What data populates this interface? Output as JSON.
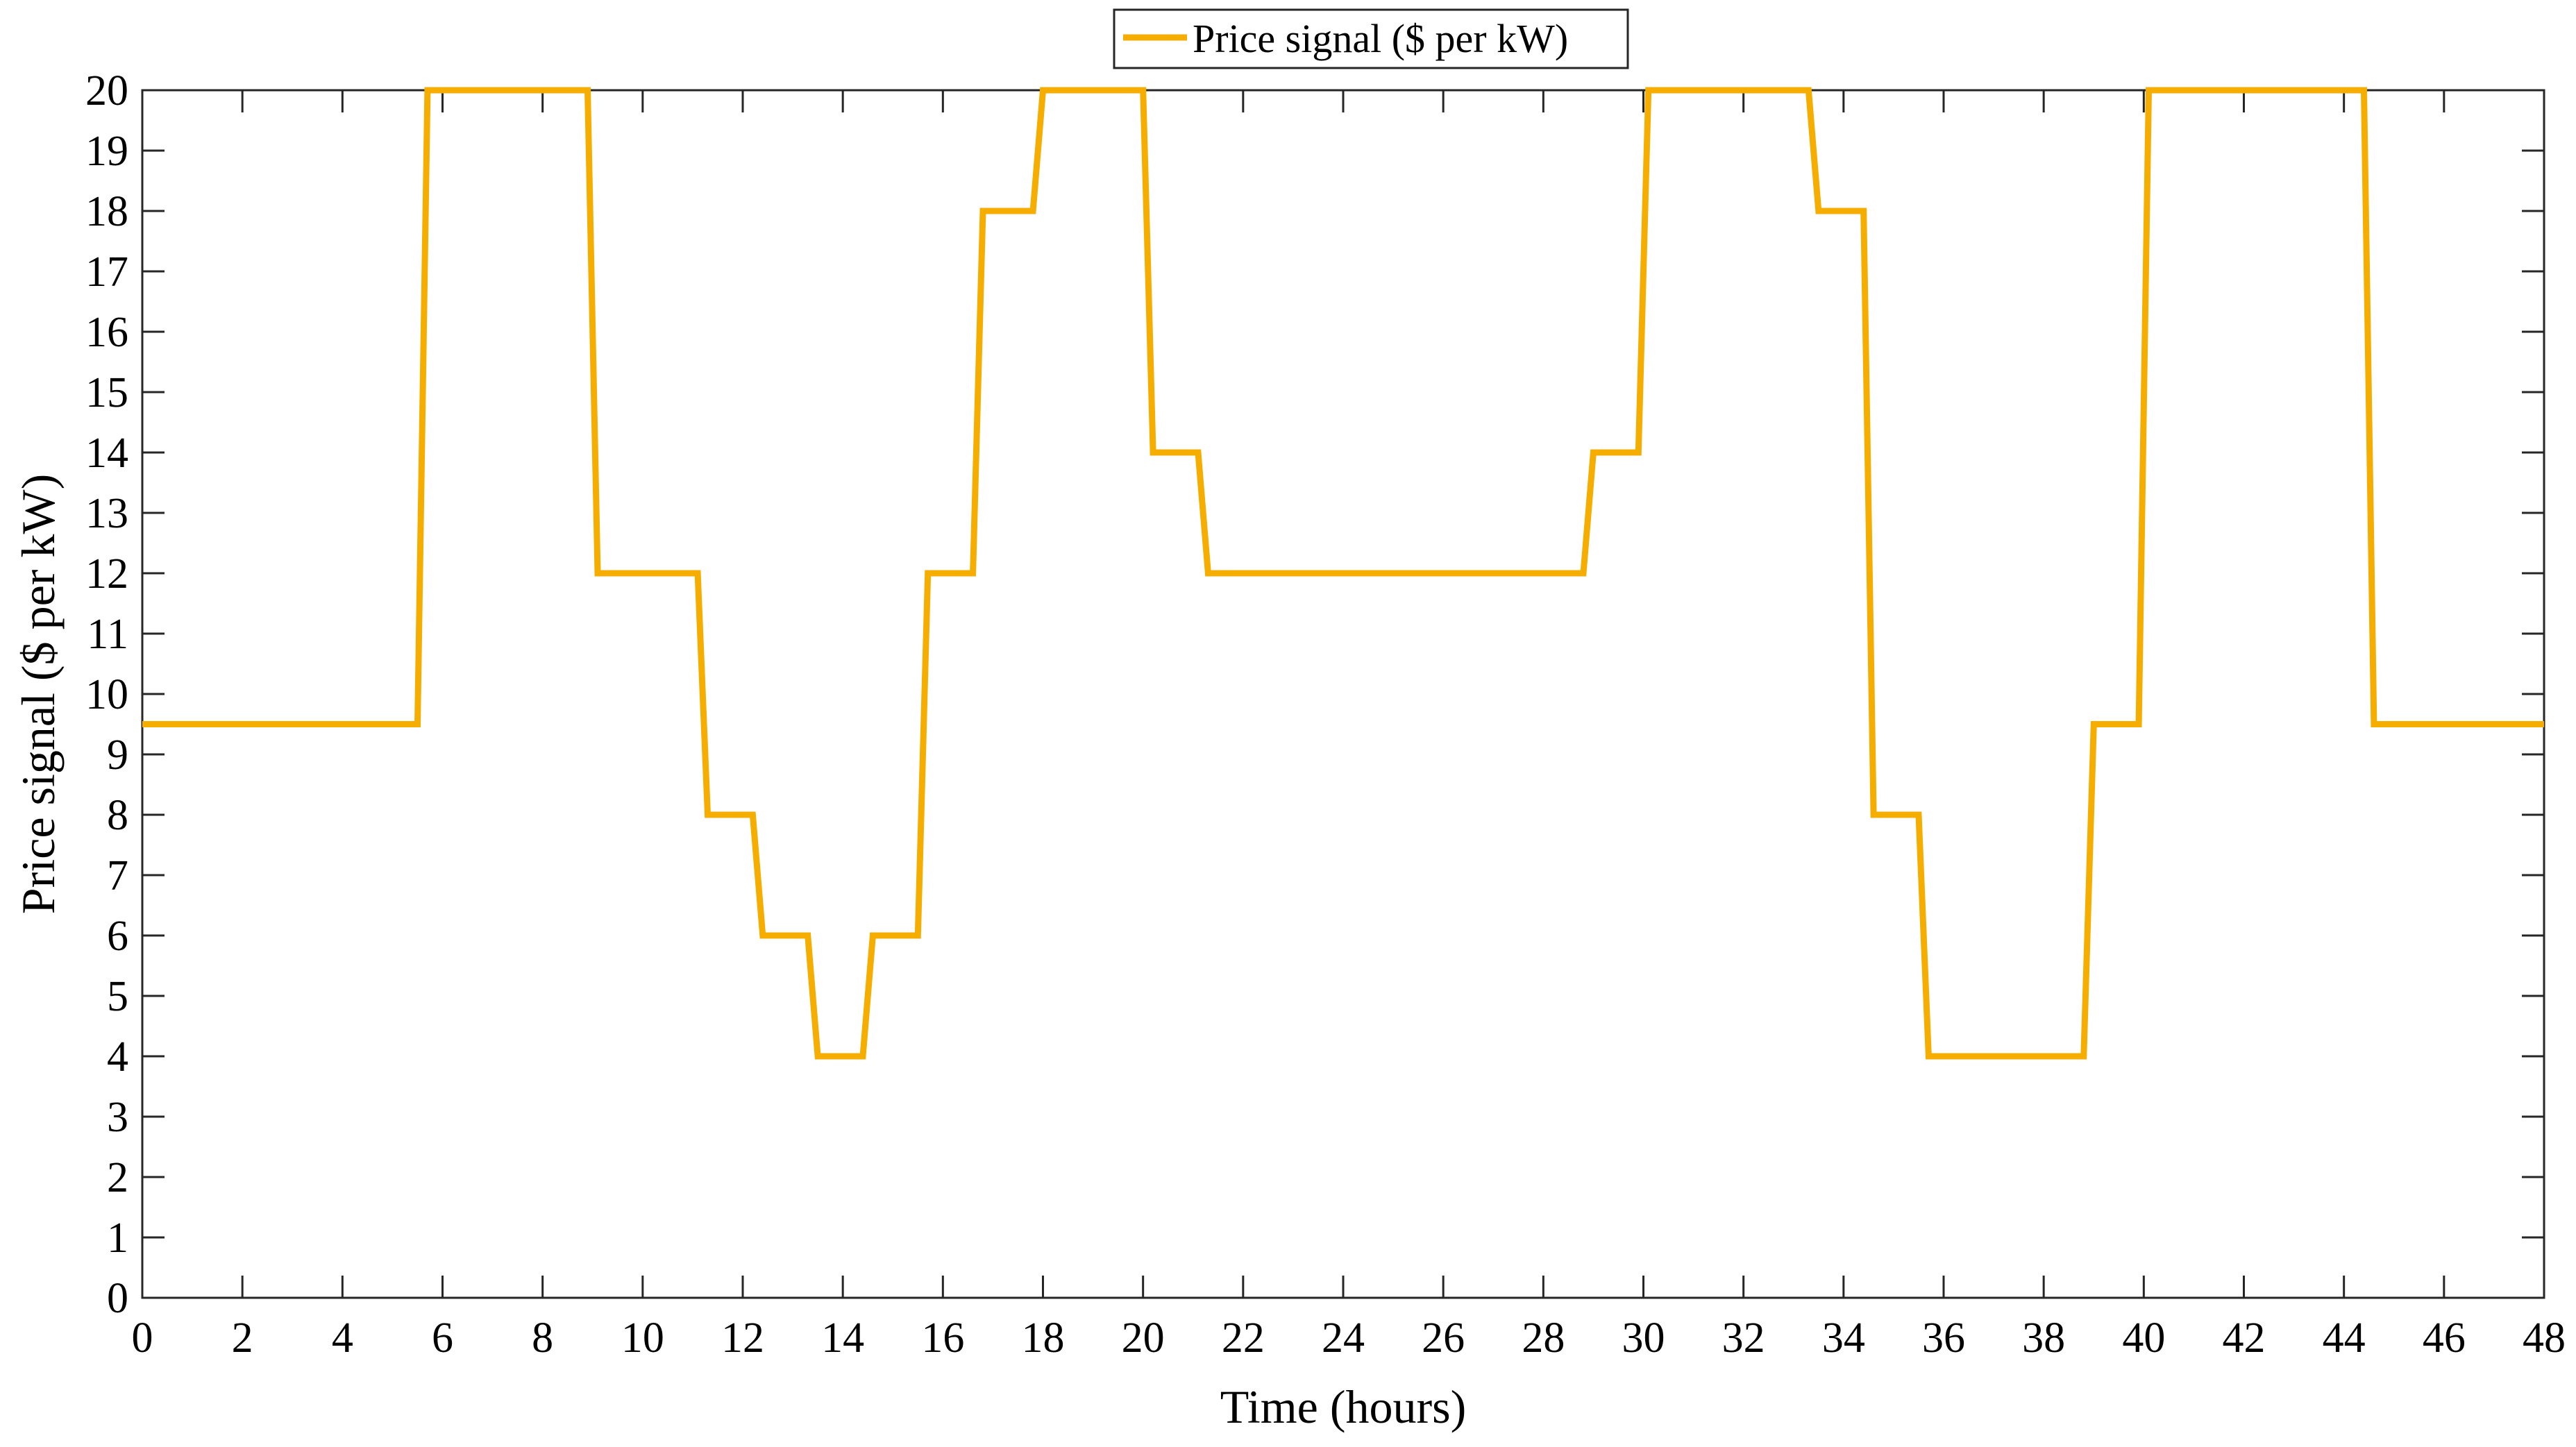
{
  "chart_data": {
    "type": "line",
    "xlabel": "Time (hours)",
    "ylabel": "Price signal ($ per kW)",
    "xlim": [
      0,
      48
    ],
    "ylim": [
      0,
      20
    ],
    "xticks": [
      0,
      2,
      4,
      6,
      8,
      10,
      12,
      14,
      16,
      18,
      20,
      22,
      24,
      26,
      28,
      30,
      32,
      34,
      36,
      38,
      40,
      42,
      44,
      46,
      48
    ],
    "yticks": [
      0,
      1,
      2,
      3,
      4,
      5,
      6,
      7,
      8,
      9,
      10,
      11,
      12,
      13,
      14,
      15,
      16,
      17,
      18,
      19,
      20
    ],
    "grid": false,
    "legend_position": "top-center",
    "series": [
      {
        "name": "Price signal ($ per kW)",
        "color": "#F5AE00",
        "x": [
          0,
          5.5,
          5.7,
          8.9,
          9.1,
          11.1,
          11.3,
          12.2,
          12.4,
          13.3,
          13.5,
          14.4,
          14.6,
          15.5,
          15.7,
          16.6,
          16.8,
          17.8,
          18,
          20,
          20.2,
          21.1,
          21.3,
          28.8,
          29,
          29.9,
          30.1,
          33.3,
          33.5,
          34.4,
          34.6,
          35.5,
          35.7,
          38.8,
          39,
          39.9,
          40.1,
          44.4,
          44.6,
          48
        ],
        "y": [
          9.5,
          9.5,
          20,
          20,
          12,
          12,
          8,
          8,
          6,
          6,
          4,
          4,
          6,
          6,
          12,
          12,
          18,
          18,
          20,
          20,
          14,
          14,
          12,
          12,
          14,
          14,
          20,
          20,
          18,
          18,
          8,
          8,
          4,
          4,
          9.5,
          9.5,
          20,
          20,
          9.5,
          9.5
        ]
      }
    ]
  }
}
